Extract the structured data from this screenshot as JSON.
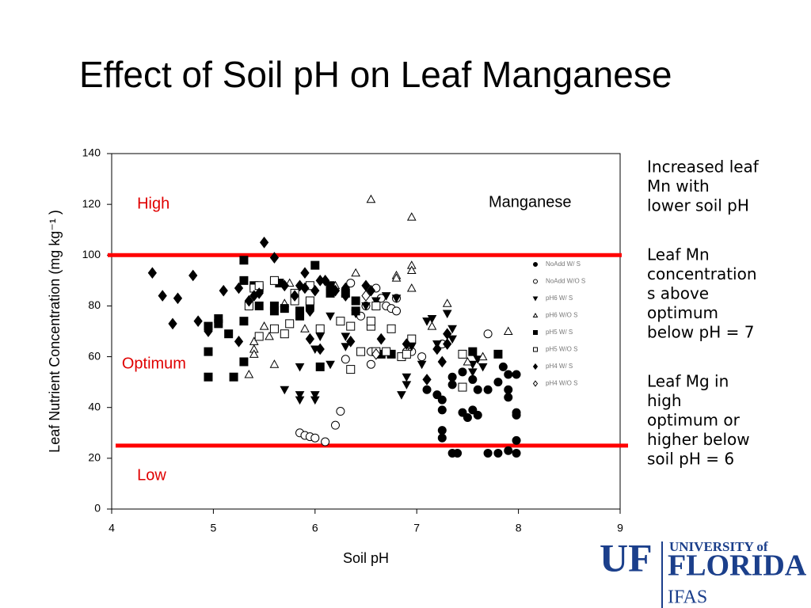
{
  "slide_title": "Effect of Soil pH on Leaf Manganese",
  "notes": [
    [
      "Increased leaf",
      "Mn with",
      "lower soil pH"
    ],
    [
      "Leaf Mn",
      "concentration",
      "s above",
      "optimum",
      "below pH = 7"
    ],
    [
      "Leaf Mg in",
      "high",
      "optimum or",
      "higher below",
      "soil pH = 6"
    ]
  ],
  "logo": {
    "initials": "UF",
    "university": "UNIVERSITY of",
    "name": "FLORIDA",
    "unit": "IFAS"
  },
  "chart_data": {
    "type": "scatter",
    "title": "Manganese",
    "xlabel": "Soil pH",
    "ylabel": "Leaf Nutrient Concentration (mg kg⁻¹ )",
    "xlim": [
      4,
      9
    ],
    "xticks": [
      4,
      5,
      6,
      7,
      8,
      9
    ],
    "ylim": [
      0,
      140
    ],
    "yticks": [
      0,
      20,
      40,
      60,
      80,
      100,
      120,
      140
    ],
    "reference_lines": {
      "values": [
        100,
        25
      ],
      "color": "#ff0000"
    },
    "annotations": [
      {
        "text": "High",
        "x": 4.25,
        "y": 120
      },
      {
        "text": "Optimum",
        "x": 4.1,
        "y": 57
      },
      {
        "text": "Low",
        "x": 4.25,
        "y": 13
      }
    ],
    "annotation_color": "#e00000",
    "legend": "right",
    "series": [
      {
        "name": "NoAdd W/ S",
        "marker": "circle",
        "filled": true,
        "x": [
          7.1,
          7.2,
          7.25,
          7.25,
          7.25,
          7.25,
          7.35,
          7.35,
          7.45,
          7.45,
          7.55,
          7.6,
          7.6,
          7.55,
          7.7,
          7.7,
          7.85,
          7.9,
          7.8,
          7.9,
          7.9,
          7.9,
          7.8,
          7.98,
          7.98,
          7.98,
          7.98,
          7.98,
          7.4,
          7.35,
          7.5
        ],
        "values": [
          47,
          45,
          43,
          39,
          31,
          28,
          52,
          49,
          54,
          38,
          51,
          47,
          37,
          39,
          47,
          22,
          56,
          53,
          50,
          47,
          44,
          23,
          22,
          53,
          38,
          37,
          27,
          22,
          22,
          22,
          36
        ]
      },
      {
        "name": "NoAdd W/O S",
        "marker": "circle",
        "filled": false,
        "x": [
          5.85,
          5.9,
          5.95,
          6.0,
          6.1,
          6.2,
          6.25,
          6.3,
          6.35,
          6.45,
          6.5,
          6.55,
          6.55,
          6.65,
          6.7,
          6.75,
          6.8,
          6.9,
          6.95,
          7.05,
          7.25,
          7.7,
          6.6,
          6.8
        ],
        "values": [
          30,
          29,
          28.5,
          28,
          26.5,
          33,
          38.5,
          59,
          89,
          76,
          80,
          62,
          57,
          83,
          80,
          79,
          78,
          62,
          62,
          60,
          65,
          69,
          87,
          83
        ]
      },
      {
        "name": "pH6 W/ S",
        "marker": "triangle-down",
        "filled": true,
        "x": [
          5.7,
          5.85,
          5.85,
          5.85,
          6.0,
          6.0,
          6.0,
          6.05,
          6.15,
          6.15,
          6.3,
          6.3,
          6.4,
          6.5,
          6.6,
          6.7,
          6.8,
          6.85,
          6.9,
          6.9,
          6.95,
          7.1,
          7.15,
          7.2,
          7.3,
          7.35,
          7.35,
          7.55,
          7.55,
          7.6,
          7.65,
          7.05
        ],
        "values": [
          47,
          45,
          43,
          56,
          45,
          43,
          63,
          68,
          57,
          76,
          64,
          68,
          77,
          80,
          82,
          84,
          83,
          45,
          49,
          52,
          64,
          74,
          75,
          65,
          77,
          71,
          67,
          57,
          54,
          59,
          56,
          57
        ]
      },
      {
        "name": "pH6 W/O S",
        "marker": "triangle-up",
        "filled": false,
        "x": [
          5.35,
          5.4,
          5.4,
          5.4,
          5.5,
          5.55,
          5.6,
          5.7,
          5.75,
          5.9,
          6.2,
          6.4,
          6.55,
          6.6,
          6.8,
          6.8,
          6.95,
          6.95,
          6.95,
          6.95,
          7.3,
          7.15,
          7.5,
          7.65,
          7.9
        ],
        "values": [
          53,
          66,
          63,
          61,
          72,
          68,
          57,
          81,
          89,
          71,
          88,
          93,
          122,
          80,
          92,
          91,
          115,
          96,
          94,
          87,
          81,
          72,
          58,
          60,
          70
        ]
      },
      {
        "name": "pH5 W/ S",
        "marker": "square",
        "filled": true,
        "x": [
          4.95,
          4.95,
          4.95,
          5.05,
          5.05,
          5.15,
          5.2,
          5.3,
          5.3,
          5.3,
          5.3,
          5.4,
          5.45,
          5.45,
          5.6,
          5.6,
          5.65,
          5.7,
          5.85,
          5.85,
          5.95,
          6.0,
          6.05,
          6.15,
          6.15,
          6.3,
          6.4,
          6.4,
          6.65,
          6.75,
          7.55,
          7.8
        ],
        "values": [
          72,
          62,
          52,
          75,
          73,
          69,
          52,
          98,
          90,
          74,
          58,
          88,
          80,
          87,
          80,
          78,
          89,
          79,
          76,
          78,
          80,
          96,
          56,
          88,
          85,
          85,
          82,
          78,
          61,
          61,
          62,
          61
        ]
      },
      {
        "name": "pH5 W/O S",
        "marker": "square",
        "filled": false,
        "x": [
          5.35,
          5.4,
          5.45,
          5.45,
          5.6,
          5.6,
          5.7,
          5.75,
          5.8,
          5.8,
          5.95,
          5.95,
          6.05,
          6.25,
          6.35,
          6.35,
          6.45,
          6.55,
          6.55,
          6.6,
          6.6,
          6.7,
          6.75,
          6.85,
          6.95,
          6.9,
          7.45,
          7.45
        ],
        "values": [
          80,
          87,
          88,
          68,
          90,
          71,
          69,
          73,
          85,
          82,
          88,
          82,
          71,
          74,
          72,
          55,
          62,
          72,
          74,
          62,
          80,
          62,
          71,
          60,
          67,
          61,
          61,
          48
        ]
      },
      {
        "name": "pH4 W/ S",
        "marker": "diamond",
        "filled": true,
        "x": [
          4.4,
          4.5,
          4.6,
          4.65,
          4.8,
          4.85,
          4.95,
          5.1,
          5.25,
          5.25,
          5.35,
          5.4,
          5.45,
          5.5,
          5.6,
          5.7,
          5.8,
          5.85,
          5.9,
          5.9,
          6.0,
          6.05,
          6.1,
          6.2,
          6.3,
          6.3,
          6.5,
          6.55,
          6.65,
          6.9,
          7.1,
          7.2,
          7.25,
          7.3,
          7.3,
          5.95,
          5.95,
          6.05,
          6.35
        ],
        "values": [
          93,
          84,
          73,
          83,
          92,
          74,
          70,
          86,
          87,
          66,
          82,
          84,
          85,
          105,
          99,
          88,
          84,
          88,
          87,
          93,
          86,
          90,
          90,
          86,
          84,
          87,
          88,
          86,
          67,
          65,
          51,
          63,
          58,
          65,
          69,
          67,
          78,
          63,
          66
        ]
      },
      {
        "name": "pH4 W/O S",
        "marker": "diamond",
        "filled": false,
        "x": [
          6.6,
          6.5
        ],
        "values": [
          61,
          84
        ]
      }
    ]
  }
}
